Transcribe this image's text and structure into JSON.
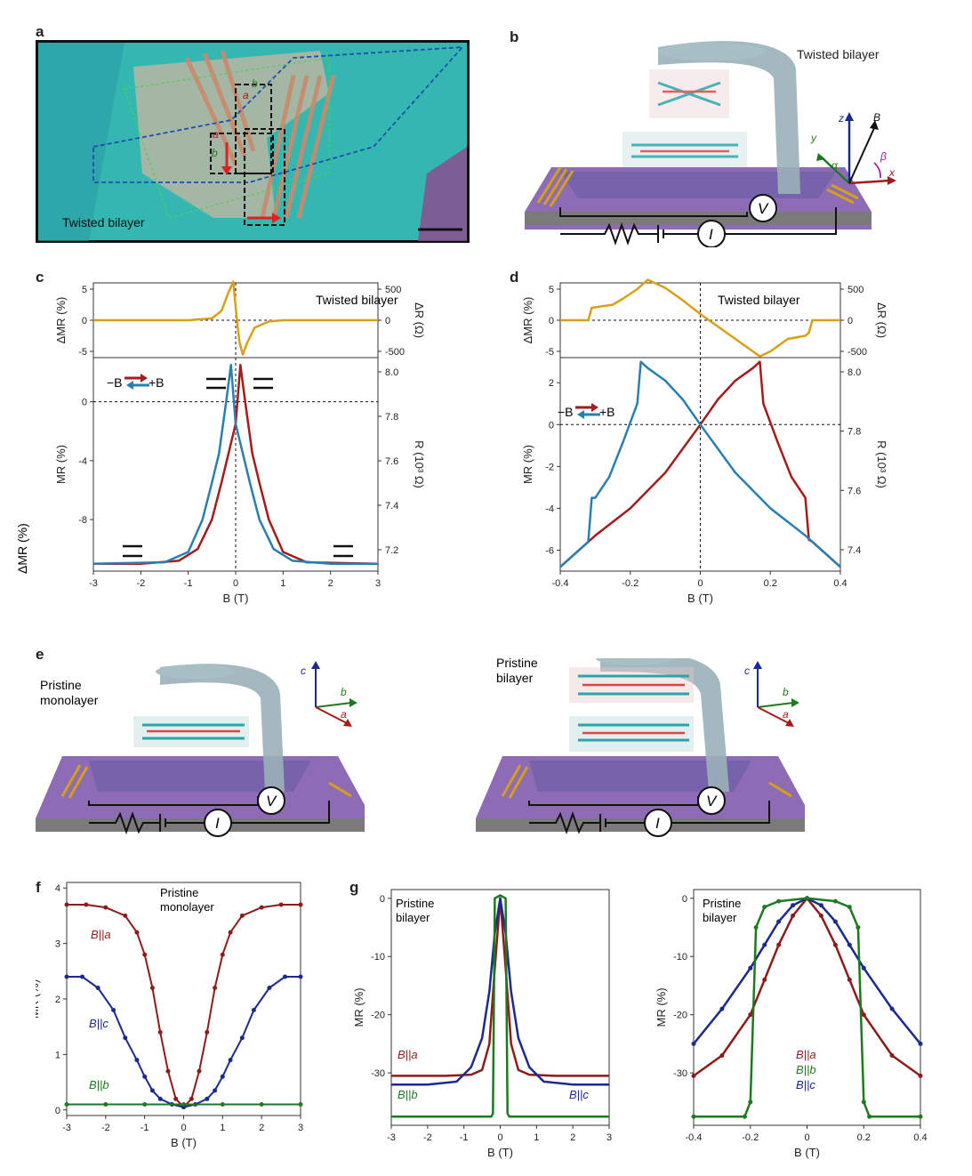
{
  "panels": {
    "a": "a",
    "b": "b",
    "c": "c",
    "d": "d",
    "e": "e",
    "f": "f",
    "g": "g"
  },
  "panel_a": {
    "title": "Twisted bilayer",
    "axes": {
      "a": "a",
      "b": "b"
    }
  },
  "panel_b": {
    "title": "Twisted bilayer",
    "axis_labels": {
      "z": "z",
      "y": "y",
      "x": "x",
      "B": "B",
      "alpha": "α",
      "beta": "β"
    },
    "meters": {
      "V": "V",
      "I": "I"
    }
  },
  "panel_e": {
    "left_title_line1": "Pristine",
    "left_title_line2": "monolayer",
    "right_title_line1": "Pristine",
    "right_title_line2": "bilayer",
    "axis_labels": {
      "c": "c",
      "b": "b",
      "a": "a"
    },
    "meters": {
      "V": "V",
      "I": "I"
    }
  },
  "colors": {
    "red": "#a31c1c",
    "blue": "#2a7fb0",
    "orange": "#d9a017",
    "navy": "#1c2a8c",
    "green": "#1e7a1e",
    "darkred": "#8c1c1c",
    "teal_bg": "#33b8b0",
    "purple_substrate": "#8d5fb5"
  },
  "chart_data": [
    {
      "id": "c_top",
      "type": "line",
      "title": "Twisted bilayer",
      "ylabel": "ΔMR (%)",
      "y2label": "ΔR (Ω)",
      "xlim": [
        -3,
        3
      ],
      "ylim": [
        -6,
        6
      ],
      "yticks": [
        -5,
        0,
        5
      ],
      "y2ticks": [
        "500",
        "0",
        "-500"
      ],
      "series": [
        {
          "color": "#d9a017",
          "x": [
            -3,
            -2,
            -1,
            -0.5,
            -0.3,
            -0.15,
            -0.05,
            0.02,
            0.08,
            0.15,
            0.25,
            0.4,
            0.7,
            1,
            2,
            3
          ],
          "y": [
            0,
            0,
            0,
            0.3,
            1.5,
            4.5,
            6.2,
            0.5,
            -3.5,
            -5.5,
            -3.5,
            -1.2,
            -0.2,
            0,
            0,
            0
          ]
        }
      ]
    },
    {
      "id": "c_main",
      "type": "line",
      "xlabel": "B (T)",
      "ylabel": "MR (%)",
      "y2label": "R (10³ Ω)",
      "xlim": [
        -3,
        3
      ],
      "ylim": [
        -11.5,
        3
      ],
      "xticks": [
        -3,
        -2,
        -1,
        0,
        1,
        2,
        3
      ],
      "yticks": [
        -8,
        -4,
        0
      ],
      "y2ticks": [
        "8.0",
        "7.8",
        "7.6",
        "7.4",
        "7.2"
      ],
      "legend": [
        "−B",
        "+B"
      ],
      "series": [
        {
          "name": "−B",
          "color": "#a31c1c",
          "x": [
            -3,
            -2,
            -1.2,
            -0.8,
            -0.5,
            -0.3,
            -0.15,
            0,
            0.1,
            0.2,
            0.35,
            0.5,
            0.7,
            1,
            1.5,
            3
          ],
          "y": [
            -11,
            -11,
            -10.8,
            -10,
            -8,
            -5.5,
            -3.5,
            -1.5,
            2.5,
            0,
            -3.5,
            -5.5,
            -8,
            -10.2,
            -10.9,
            -11
          ]
        },
        {
          "name": "+B",
          "color": "#2a7fb0",
          "x": [
            -3,
            -1.5,
            -1,
            -0.7,
            -0.5,
            -0.35,
            -0.2,
            -0.1,
            0,
            0.15,
            0.3,
            0.5,
            0.8,
            1.2,
            2,
            3
          ],
          "y": [
            -11,
            -10.9,
            -10.2,
            -8,
            -5.5,
            -3.5,
            0,
            2.5,
            -1.5,
            -3.5,
            -5.5,
            -8,
            -10,
            -10.8,
            -11,
            -11
          ]
        }
      ]
    },
    {
      "id": "d_top",
      "type": "line",
      "title": "Twisted bilayer",
      "ylabel": "ΔMR (%)",
      "y2label": "ΔR (Ω)",
      "xlim": [
        -0.4,
        0.4
      ],
      "ylim": [
        -6,
        6
      ],
      "yticks": [
        -5,
        0,
        5
      ],
      "y2ticks": [
        "500",
        "0",
        "-500"
      ],
      "series": [
        {
          "color": "#d9a017",
          "x": [
            -0.4,
            -0.32,
            -0.31,
            -0.25,
            -0.22,
            -0.18,
            -0.15,
            -0.1,
            -0.05,
            0,
            0.05,
            0.1,
            0.15,
            0.17,
            0.2,
            0.25,
            0.3,
            0.31,
            0.32,
            0.4
          ],
          "y": [
            0,
            0,
            2,
            2.5,
            3.5,
            5,
            6.5,
            5.2,
            3.2,
            1,
            -1,
            -3,
            -5,
            -5.8,
            -5,
            -3,
            -2.5,
            -2,
            0,
            0
          ]
        }
      ]
    },
    {
      "id": "d_main",
      "type": "line",
      "xlabel": "B (T)",
      "ylabel": "MR (%)",
      "y2label": "R (10³ Ω)",
      "xlim": [
        -0.4,
        0.4
      ],
      "ylim": [
        -7,
        3.2
      ],
      "xticks": [
        -0.4,
        -0.2,
        0,
        0.2,
        0.4
      ],
      "yticks": [
        -6,
        -4,
        -2,
        0,
        2
      ],
      "y2ticks": [
        "8.0",
        "7.8",
        "7.6",
        "7.4"
      ],
      "legend": [
        "−B",
        "+B"
      ],
      "series": [
        {
          "name": "−B",
          "color": "#a31c1c",
          "x": [
            -0.4,
            -0.3,
            -0.2,
            -0.1,
            0,
            0.05,
            0.1,
            0.15,
            0.17,
            0.18,
            0.22,
            0.26,
            0.3,
            0.31,
            0.32,
            0.36,
            0.4
          ],
          "y": [
            -6.8,
            -5.3,
            -4,
            -2.3,
            0,
            1.2,
            2.1,
            2.7,
            3,
            1,
            -0.8,
            -2.5,
            -3.5,
            -5.5,
            -5.6,
            -6.2,
            -6.8
          ]
        },
        {
          "name": "+B",
          "color": "#2a7fb0",
          "x": [
            -0.4,
            -0.36,
            -0.32,
            -0.31,
            -0.3,
            -0.26,
            -0.22,
            -0.18,
            -0.17,
            -0.15,
            -0.1,
            -0.05,
            0,
            0.1,
            0.2,
            0.3,
            0.4
          ],
          "y": [
            -6.8,
            -6.2,
            -5.6,
            -3.5,
            -3.5,
            -2.5,
            -0.8,
            1,
            3,
            2.7,
            2.1,
            1.2,
            0,
            -2.3,
            -4,
            -5.3,
            -6.8
          ]
        }
      ]
    },
    {
      "id": "f",
      "type": "scatter",
      "title": "Pristine monolayer",
      "xlabel": "B (T)",
      "ylabel": "MR (%)",
      "xlim": [
        -3,
        3
      ],
      "ylim": [
        -0.1,
        4.1
      ],
      "xticks": [
        -3,
        -2,
        -1,
        0,
        1,
        2,
        3
      ],
      "yticks": [
        0,
        1,
        2,
        3,
        4
      ],
      "series": [
        {
          "name": "B||a",
          "color": "#8c1c1c",
          "x": [
            -3,
            -2.5,
            -2,
            -1.5,
            -1.2,
            -1,
            -0.8,
            -0.6,
            -0.4,
            -0.2,
            0,
            0.2,
            0.4,
            0.6,
            0.8,
            1,
            1.2,
            1.5,
            2,
            2.5,
            3
          ],
          "y": [
            3.7,
            3.7,
            3.65,
            3.5,
            3.2,
            2.8,
            2.2,
            1.4,
            0.7,
            0.2,
            0.05,
            0.2,
            0.7,
            1.4,
            2.2,
            2.8,
            3.2,
            3.5,
            3.65,
            3.7,
            3.7
          ]
        },
        {
          "name": "B||c",
          "color": "#1c2a8c",
          "x": [
            -3,
            -2.6,
            -2.2,
            -1.8,
            -1.5,
            -1.2,
            -1,
            -0.8,
            -0.6,
            -0.3,
            0,
            0.3,
            0.6,
            0.8,
            1,
            1.2,
            1.5,
            1.8,
            2.2,
            2.6,
            3
          ],
          "y": [
            2.4,
            2.4,
            2.2,
            1.8,
            1.3,
            0.9,
            0.6,
            0.35,
            0.2,
            0.1,
            0.05,
            0.1,
            0.2,
            0.35,
            0.6,
            0.9,
            1.3,
            1.8,
            2.2,
            2.4,
            2.4
          ]
        },
        {
          "name": "B||b",
          "color": "#1e7a1e",
          "x": [
            -3,
            -2,
            -1,
            0,
            1,
            2,
            3
          ],
          "y": [
            0.1,
            0.1,
            0.1,
            0.1,
            0.1,
            0.1,
            0.1
          ]
        }
      ]
    },
    {
      "id": "g_left",
      "type": "line",
      "title": "Pristine bilayer",
      "xlabel": "B (T)",
      "ylabel": "MR (%)",
      "xlim": [
        -3,
        3
      ],
      "ylim": [
        -39,
        1.5
      ],
      "xticks": [
        -3,
        -2,
        -1,
        0,
        1,
        2,
        3
      ],
      "yticks": [
        0,
        -10,
        -20,
        -30
      ],
      "series": [
        {
          "name": "B||a",
          "color": "#8c1c1c",
          "x": [
            -3,
            -1.5,
            -0.8,
            -0.5,
            -0.3,
            -0.15,
            0,
            0.15,
            0.3,
            0.5,
            0.8,
            1.5,
            3
          ],
          "y": [
            -30.5,
            -30.5,
            -30.3,
            -29.5,
            -25,
            -12,
            0,
            -12,
            -25,
            -29.5,
            -30.3,
            -30.5,
            -30.5
          ]
        },
        {
          "name": "B||c",
          "color": "#1c2a8c",
          "x": [
            -3,
            -2,
            -1.2,
            -0.8,
            -0.5,
            -0.3,
            -0.15,
            0,
            0.15,
            0.3,
            0.5,
            0.8,
            1.2,
            2,
            3
          ],
          "y": [
            -32,
            -32,
            -31.5,
            -29,
            -24,
            -16,
            -6,
            0,
            -6,
            -16,
            -24,
            -29,
            -31.5,
            -32,
            -32
          ]
        },
        {
          "name": "B||b",
          "color": "#1e7a1e",
          "x": [
            -3,
            -0.25,
            -0.2,
            -0.15,
            0,
            0.15,
            0.2,
            0.25,
            3
          ],
          "y": [
            -37.5,
            -37.5,
            -37,
            0,
            0.5,
            0,
            -37,
            -37.5,
            -37.5
          ]
        }
      ]
    },
    {
      "id": "g_right",
      "type": "line",
      "title": "Pristine bilayer",
      "xlabel": "B (T)",
      "ylabel": "MR (%)",
      "xlim": [
        -0.4,
        0.4
      ],
      "ylim": [
        -39,
        1.5
      ],
      "xticks": [
        -0.4,
        -0.2,
        0,
        0.2,
        0.4
      ],
      "yticks": [
        0,
        -10,
        -20,
        -30
      ],
      "series": [
        {
          "name": "B||a",
          "color": "#8c1c1c",
          "x": [
            -0.4,
            -0.3,
            -0.2,
            -0.15,
            -0.1,
            -0.05,
            0,
            0.05,
            0.1,
            0.15,
            0.2,
            0.3,
            0.4
          ],
          "y": [
            -30.5,
            -27,
            -20,
            -14,
            -8,
            -3,
            0,
            -3,
            -8,
            -14,
            -20,
            -27,
            -30.5
          ]
        },
        {
          "name": "B||c",
          "color": "#1c2a8c",
          "x": [
            -0.4,
            -0.3,
            -0.2,
            -0.15,
            -0.1,
            -0.05,
            0,
            0.05,
            0.1,
            0.15,
            0.2,
            0.3,
            0.4
          ],
          "y": [
            -25,
            -19,
            -12,
            -8,
            -4,
            -1.2,
            0,
            -1.2,
            -4,
            -8,
            -12,
            -19,
            -25
          ]
        },
        {
          "name": "B||b",
          "color": "#1e7a1e",
          "x": [
            -0.4,
            -0.22,
            -0.2,
            -0.18,
            -0.15,
            -0.1,
            0,
            0.1,
            0.15,
            0.18,
            0.2,
            0.22,
            0.4
          ],
          "y": [
            -37.5,
            -37.5,
            -35,
            -5,
            -1.5,
            -0.5,
            0,
            -0.5,
            -1.5,
            -5,
            -35,
            -37.5,
            -37.5
          ]
        }
      ]
    }
  ],
  "labels": {
    "c_top_title": "Twisted bilayer",
    "d_top_title": "Twisted bilayer",
    "c_legend_minus": "−B",
    "c_legend_plus": "+B",
    "d_legend_minus": "−B",
    "d_legend_plus": "+B",
    "f_title_line1": "Pristine",
    "f_title_line2": "monolayer",
    "f_Ba": "B||a",
    "f_Bc": "B||c",
    "f_Bb": "B||b",
    "g_title_line1": "Pristine",
    "g_title_line2": "bilayer",
    "g_Ba": "B||a",
    "g_Bb": "B||b",
    "g_Bc": "B||c",
    "g2_title_line1": "Pristine",
    "g2_title_line2": "bilayer",
    "g2_Ba": "B||a",
    "g2_Bb": "B||b",
    "g2_Bc": "B||c",
    "dmr_label": "ΔMR (%)",
    "dr_label": "ΔR (Ω)",
    "mr_label": "MR (%)",
    "r_label": "R (10³ Ω)",
    "b_label": "B (T)"
  }
}
